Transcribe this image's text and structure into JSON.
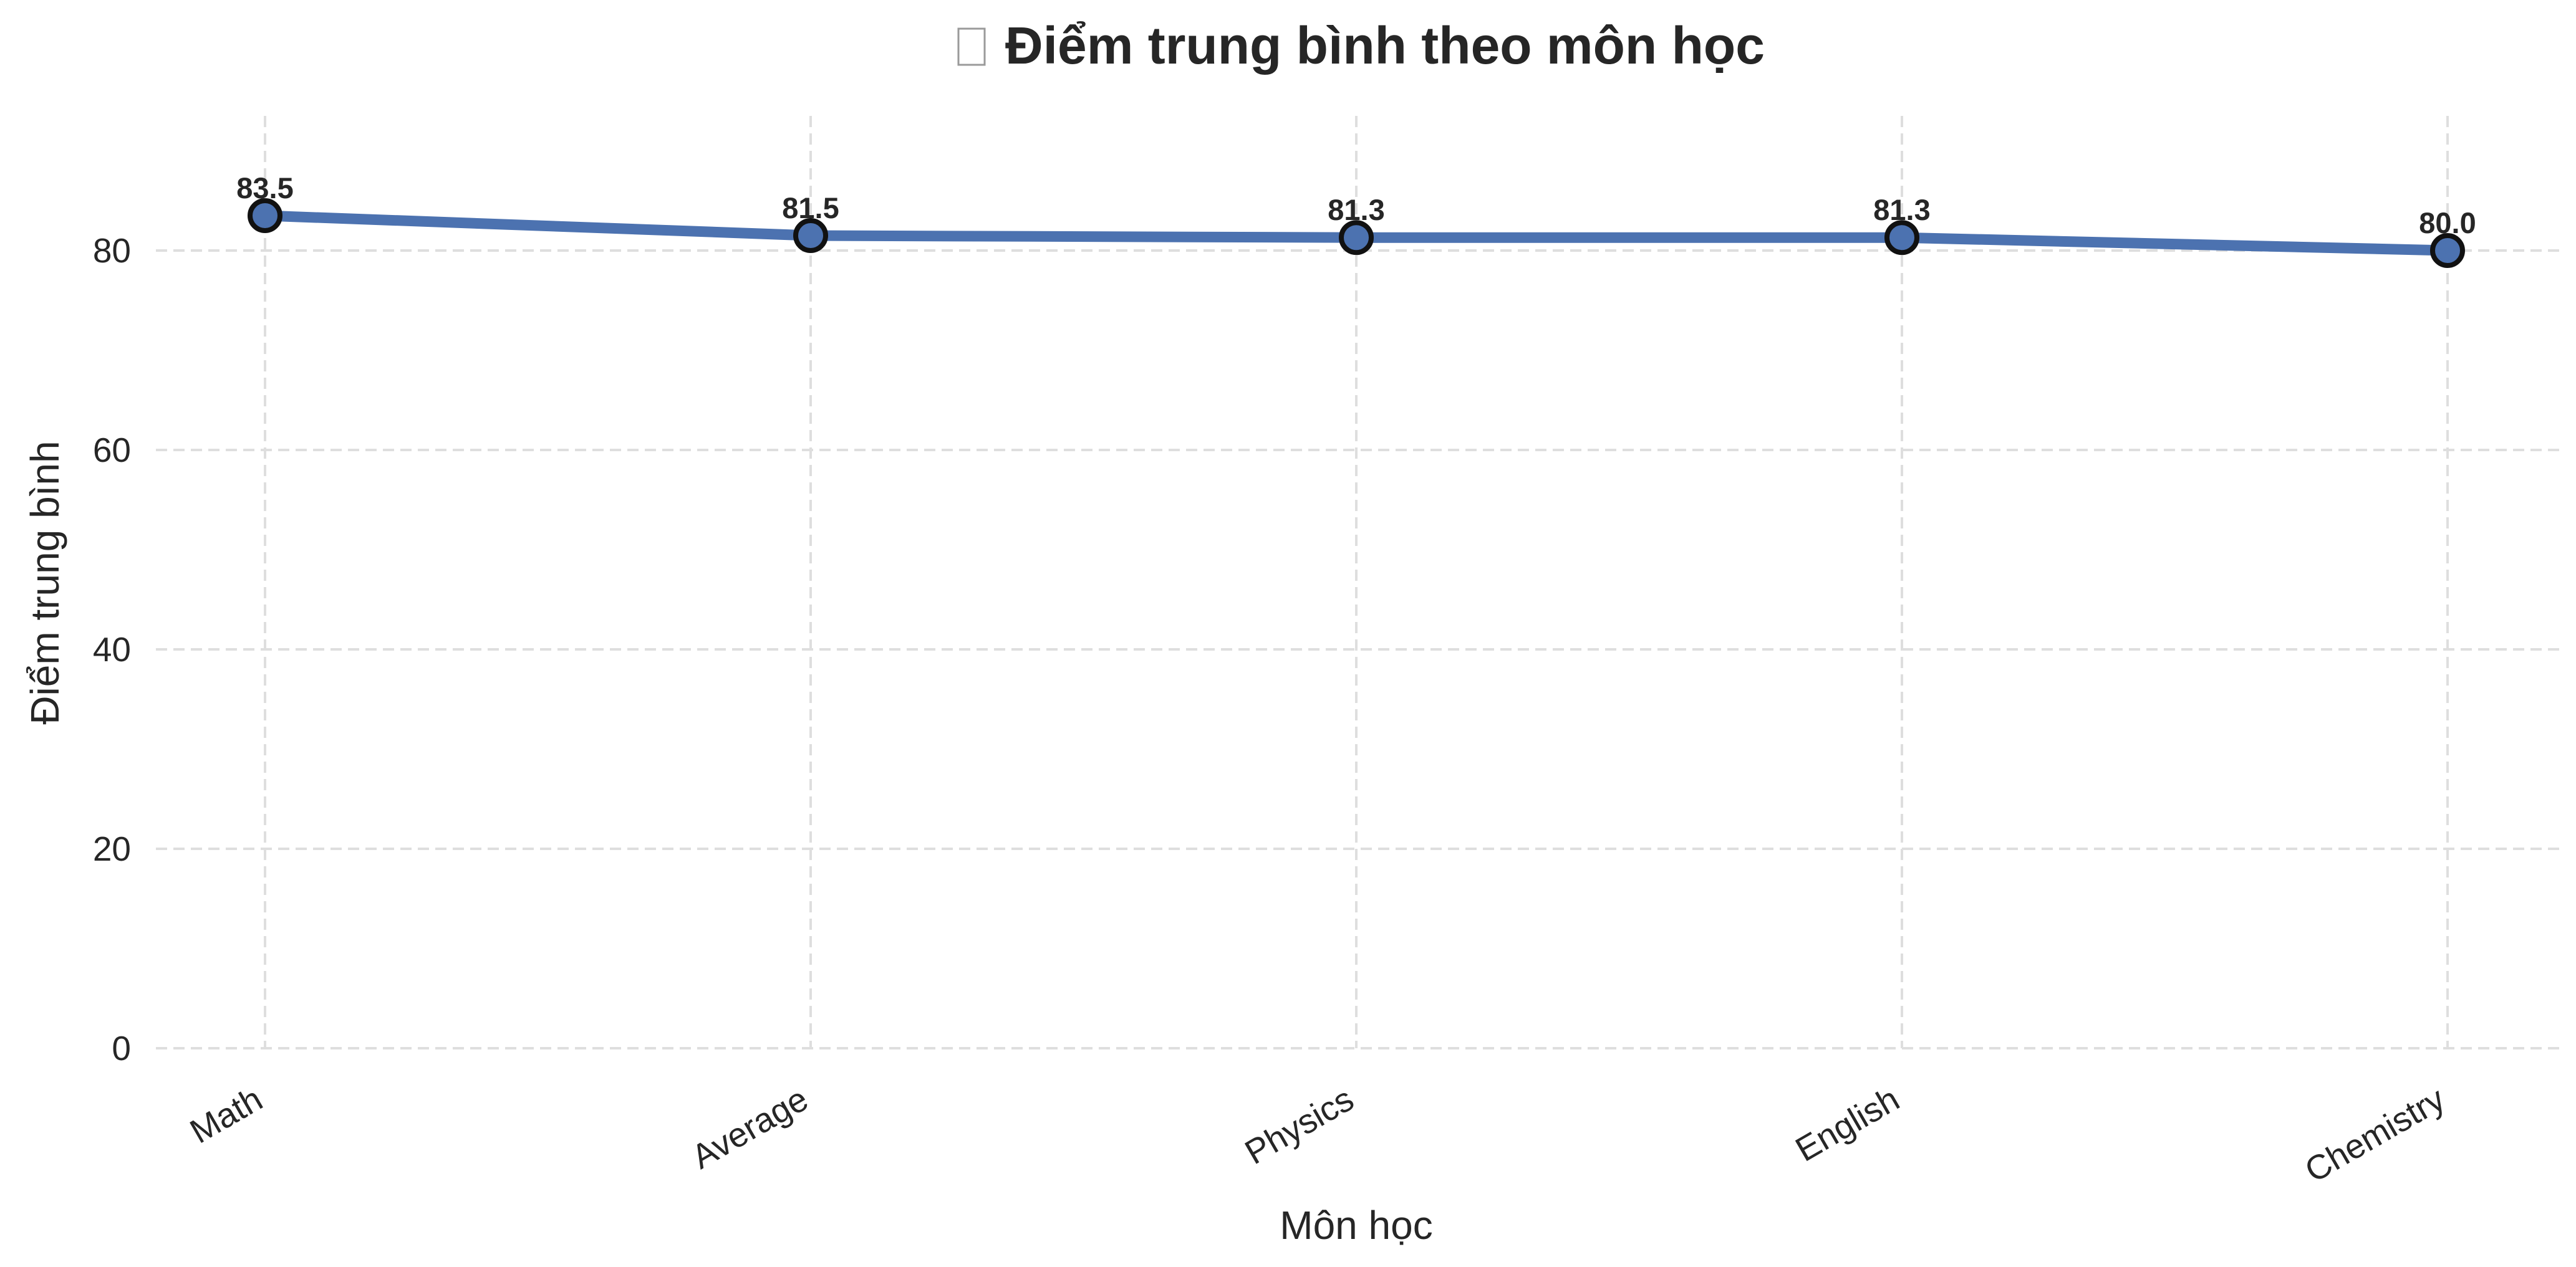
{
  "chart_data": {
    "type": "line",
    "title": "Điểm trung bình theo môn học",
    "title_icon": "chart-icon",
    "xlabel": "Môn học",
    "ylabel": "Điểm trung bình",
    "categories": [
      "Math",
      "Average",
      "Physics",
      "English",
      "Chemistry"
    ],
    "series": [
      {
        "values": [
          83.5,
          81.5,
          81.3,
          81.3,
          80.0
        ],
        "color": "#4c72b0"
      }
    ],
    "data_labels": [
      "83.5",
      "81.5",
      "81.3",
      "81.3",
      "80.0"
    ],
    "ylim": [
      0,
      93.5
    ],
    "yticks": [
      0,
      20,
      40,
      60,
      80
    ],
    "grid": true,
    "marker": "circle",
    "marker_edge_color": "#111111",
    "legend": "none"
  }
}
